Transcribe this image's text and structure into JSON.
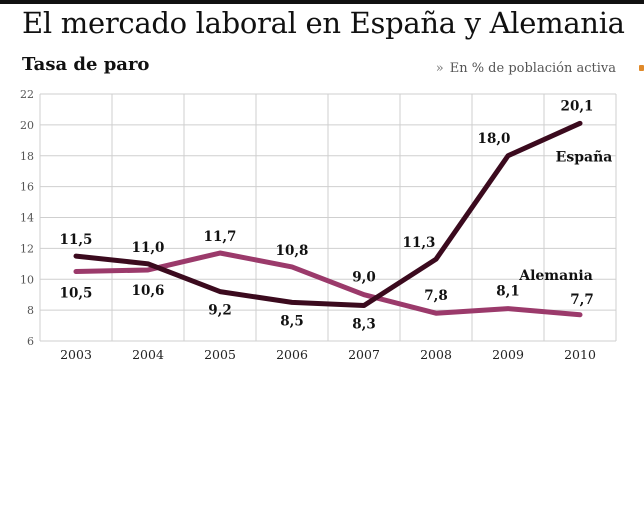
{
  "header": {
    "title": "El mercado laboral en España y Alemania",
    "subtitle": "Tasa de paro",
    "unit_chevron": "»",
    "unit_note": "En % de población activa"
  },
  "chart_data": {
    "type": "line",
    "title": "Tasa de paro",
    "xlabel": "",
    "ylabel": "",
    "x": [
      "2003",
      "2004",
      "2005",
      "2006",
      "2007",
      "2008",
      "2009",
      "2010"
    ],
    "ylim": [
      6,
      22
    ],
    "yticks": [
      6,
      8,
      10,
      12,
      14,
      16,
      18,
      20,
      22
    ],
    "grid": true,
    "series": [
      {
        "name": "España",
        "color": "#3b0a1e",
        "values": [
          11.5,
          11.0,
          9.2,
          8.5,
          8.3,
          11.3,
          18.0,
          20.1
        ],
        "labels": [
          "11,5",
          "11,0",
          "9,2",
          "8,5",
          "8,3",
          "11,3",
          "18,0",
          "20,1"
        ]
      },
      {
        "name": "Alemania",
        "color": "#9b3a6b",
        "values": [
          10.5,
          10.6,
          11.7,
          10.8,
          9.0,
          7.8,
          8.1,
          7.7
        ],
        "labels": [
          "10,5",
          "10,6",
          "11,7",
          "10,8",
          "9,0",
          "7,8",
          "8,1",
          "7,7"
        ]
      }
    ]
  }
}
